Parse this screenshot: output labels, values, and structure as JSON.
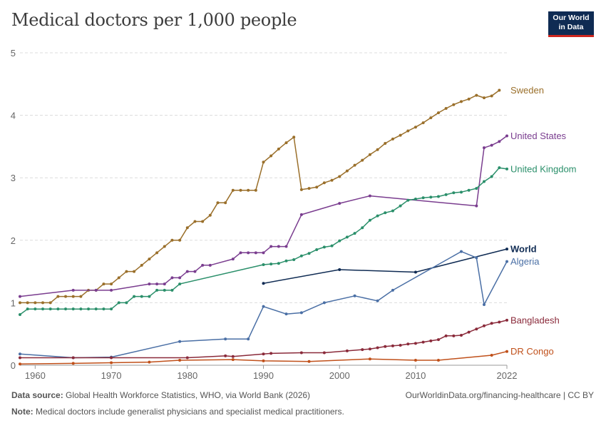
{
  "header": {
    "title": "Medical doctors per 1,000 people",
    "logo_line1": "Our World",
    "logo_line2": "in Data"
  },
  "footer": {
    "source_label": "Data source:",
    "source_text": " Global Health Workforce Statistics, WHO, via World Bank (2026)",
    "url_text": "OurWorldinData.org/financing-healthcare | CC BY",
    "note_label": "Note:",
    "note_text": " Medical doctors include generalist physicians and specialist medical practitioners."
  },
  "chart_data": {
    "type": "line",
    "title": "Medical doctors per 1,000 people",
    "xlabel": "",
    "ylabel": "",
    "xlim": [
      1958,
      2022
    ],
    "ylim": [
      0,
      5
    ],
    "x_ticks": [
      1960,
      1970,
      1980,
      1990,
      2000,
      2010,
      2022
    ],
    "y_ticks": [
      0,
      1,
      2,
      3,
      4,
      5
    ],
    "grid": "horizontal dashed",
    "legend": "labels at line ends (right)",
    "series": [
      {
        "name": "Sweden",
        "color": "#9a6f2a",
        "points": [
          [
            1958,
            1.0
          ],
          [
            1959,
            1.0
          ],
          [
            1960,
            1.0
          ],
          [
            1961,
            1.0
          ],
          [
            1962,
            1.0
          ],
          [
            1963,
            1.1
          ],
          [
            1964,
            1.1
          ],
          [
            1965,
            1.1
          ],
          [
            1966,
            1.1
          ],
          [
            1967,
            1.2
          ],
          [
            1968,
            1.2
          ],
          [
            1969,
            1.3
          ],
          [
            1970,
            1.3
          ],
          [
            1971,
            1.4
          ],
          [
            1972,
            1.5
          ],
          [
            1973,
            1.5
          ],
          [
            1974,
            1.6
          ],
          [
            1975,
            1.7
          ],
          [
            1976,
            1.8
          ],
          [
            1977,
            1.9
          ],
          [
            1978,
            2.0
          ],
          [
            1979,
            2.0
          ],
          [
            1980,
            2.2
          ],
          [
            1981,
            2.3
          ],
          [
            1982,
            2.3
          ],
          [
            1983,
            2.4
          ],
          [
            1984,
            2.6
          ],
          [
            1985,
            2.6
          ],
          [
            1986,
            2.8
          ],
          [
            1987,
            2.8
          ],
          [
            1988,
            2.8
          ],
          [
            1989,
            2.8
          ],
          [
            1990,
            3.25
          ],
          [
            1991,
            3.35
          ],
          [
            1992,
            3.46
          ],
          [
            1993,
            3.56
          ],
          [
            1994,
            3.65
          ],
          [
            1995,
            2.81
          ],
          [
            1996,
            2.83
          ],
          [
            1997,
            2.85
          ],
          [
            1998,
            2.92
          ],
          [
            1999,
            2.96
          ],
          [
            2000,
            3.02
          ],
          [
            2001,
            3.11
          ],
          [
            2002,
            3.2
          ],
          [
            2003,
            3.28
          ],
          [
            2004,
            3.37
          ],
          [
            2005,
            3.45
          ],
          [
            2006,
            3.55
          ],
          [
            2007,
            3.62
          ],
          [
            2008,
            3.68
          ],
          [
            2009,
            3.75
          ],
          [
            2010,
            3.81
          ],
          [
            2011,
            3.88
          ],
          [
            2012,
            3.96
          ],
          [
            2013,
            4.04
          ],
          [
            2014,
            4.11
          ],
          [
            2015,
            4.17
          ],
          [
            2016,
            4.22
          ],
          [
            2017,
            4.26
          ],
          [
            2018,
            4.32
          ],
          [
            2019,
            4.28
          ],
          [
            2020,
            4.31
          ],
          [
            2021,
            4.4
          ]
        ]
      },
      {
        "name": "United States",
        "color": "#7a3d8f",
        "points": [
          [
            1958,
            1.1
          ],
          [
            1965,
            1.2
          ],
          [
            1968,
            1.2
          ],
          [
            1970,
            1.2
          ],
          [
            1975,
            1.3
          ],
          [
            1976,
            1.3
          ],
          [
            1977,
            1.3
          ],
          [
            1978,
            1.4
          ],
          [
            1979,
            1.4
          ],
          [
            1980,
            1.5
          ],
          [
            1981,
            1.5
          ],
          [
            1982,
            1.6
          ],
          [
            1983,
            1.6
          ],
          [
            1986,
            1.7
          ],
          [
            1987,
            1.8
          ],
          [
            1988,
            1.8
          ],
          [
            1989,
            1.8
          ],
          [
            1990,
            1.8
          ],
          [
            1991,
            1.9
          ],
          [
            1992,
            1.9
          ],
          [
            1993,
            1.9
          ],
          [
            1995,
            2.41
          ],
          [
            2000,
            2.59
          ],
          [
            2004,
            2.71
          ],
          [
            2018,
            2.55
          ],
          [
            2019,
            3.48
          ],
          [
            2020,
            3.52
          ],
          [
            2021,
            3.58
          ],
          [
            2022,
            3.67
          ]
        ]
      },
      {
        "name": "United Kingdom",
        "color": "#2a8f6a",
        "points": [
          [
            1958,
            0.81
          ],
          [
            1959,
            0.9
          ],
          [
            1960,
            0.9
          ],
          [
            1961,
            0.9
          ],
          [
            1962,
            0.9
          ],
          [
            1963,
            0.9
          ],
          [
            1964,
            0.9
          ],
          [
            1965,
            0.9
          ],
          [
            1966,
            0.9
          ],
          [
            1967,
            0.9
          ],
          [
            1968,
            0.9
          ],
          [
            1969,
            0.9
          ],
          [
            1970,
            0.9
          ],
          [
            1971,
            1.0
          ],
          [
            1972,
            1.0
          ],
          [
            1973,
            1.1
          ],
          [
            1974,
            1.1
          ],
          [
            1975,
            1.1
          ],
          [
            1976,
            1.2
          ],
          [
            1977,
            1.2
          ],
          [
            1978,
            1.2
          ],
          [
            1979,
            1.3
          ],
          [
            1990,
            1.61
          ],
          [
            1991,
            1.62
          ],
          [
            1992,
            1.63
          ],
          [
            1993,
            1.67
          ],
          [
            1994,
            1.69
          ],
          [
            1995,
            1.75
          ],
          [
            1996,
            1.79
          ],
          [
            1997,
            1.85
          ],
          [
            1998,
            1.89
          ],
          [
            1999,
            1.91
          ],
          [
            2000,
            1.99
          ],
          [
            2001,
            2.05
          ],
          [
            2002,
            2.11
          ],
          [
            2003,
            2.2
          ],
          [
            2004,
            2.32
          ],
          [
            2005,
            2.39
          ],
          [
            2006,
            2.44
          ],
          [
            2007,
            2.47
          ],
          [
            2008,
            2.55
          ],
          [
            2009,
            2.64
          ],
          [
            2010,
            2.66
          ],
          [
            2011,
            2.68
          ],
          [
            2012,
            2.69
          ],
          [
            2013,
            2.7
          ],
          [
            2014,
            2.73
          ],
          [
            2015,
            2.76
          ],
          [
            2016,
            2.77
          ],
          [
            2017,
            2.8
          ],
          [
            2018,
            2.83
          ],
          [
            2019,
            2.94
          ],
          [
            2020,
            3.02
          ],
          [
            2021,
            3.16
          ],
          [
            2022,
            3.14
          ]
        ]
      },
      {
        "name": "World",
        "color": "#0f2b53",
        "points": [
          [
            1990,
            1.31
          ],
          [
            2000,
            1.53
          ],
          [
            2010,
            1.49
          ],
          [
            2022,
            1.86
          ]
        ]
      },
      {
        "name": "Algeria",
        "color": "#4a6fa5",
        "points": [
          [
            1958,
            0.18
          ],
          [
            1965,
            0.12
          ],
          [
            1970,
            0.13
          ],
          [
            1979,
            0.38
          ],
          [
            1985,
            0.42
          ],
          [
            1988,
            0.42
          ],
          [
            1990,
            0.94
          ],
          [
            1993,
            0.82
          ],
          [
            1995,
            0.84
          ],
          [
            1998,
            1.0
          ],
          [
            2002,
            1.11
          ],
          [
            2005,
            1.03
          ],
          [
            2007,
            1.2
          ],
          [
            2016,
            1.82
          ],
          [
            2018,
            1.72
          ],
          [
            2019,
            0.97
          ],
          [
            2022,
            1.66
          ]
        ]
      },
      {
        "name": "Bangladesh",
        "color": "#8a2a3a",
        "points": [
          [
            1958,
            0.12
          ],
          [
            1965,
            0.12
          ],
          [
            1970,
            0.12
          ],
          [
            1980,
            0.12
          ],
          [
            1985,
            0.15
          ],
          [
            1986,
            0.14
          ],
          [
            1990,
            0.18
          ],
          [
            1991,
            0.19
          ],
          [
            1995,
            0.2
          ],
          [
            1998,
            0.2
          ],
          [
            2001,
            0.23
          ],
          [
            2003,
            0.25
          ],
          [
            2004,
            0.26
          ],
          [
            2005,
            0.28
          ],
          [
            2006,
            0.3
          ],
          [
            2007,
            0.31
          ],
          [
            2008,
            0.32
          ],
          [
            2009,
            0.34
          ],
          [
            2010,
            0.35
          ],
          [
            2011,
            0.37
          ],
          [
            2012,
            0.39
          ],
          [
            2013,
            0.41
          ],
          [
            2014,
            0.47
          ],
          [
            2015,
            0.47
          ],
          [
            2016,
            0.48
          ],
          [
            2017,
            0.53
          ],
          [
            2018,
            0.58
          ],
          [
            2019,
            0.63
          ],
          [
            2020,
            0.67
          ],
          [
            2021,
            0.69
          ],
          [
            2022,
            0.72
          ]
        ]
      },
      {
        "name": "DR Congo",
        "color": "#c0501a",
        "points": [
          [
            1958,
            0.02
          ],
          [
            1965,
            0.03
          ],
          [
            1970,
            0.04
          ],
          [
            1975,
            0.05
          ],
          [
            1979,
            0.08
          ],
          [
            1986,
            0.09
          ],
          [
            1990,
            0.07
          ],
          [
            1996,
            0.06
          ],
          [
            2004,
            0.1
          ],
          [
            2010,
            0.08
          ],
          [
            2013,
            0.08
          ],
          [
            2020,
            0.16
          ],
          [
            2022,
            0.22
          ]
        ]
      }
    ]
  }
}
